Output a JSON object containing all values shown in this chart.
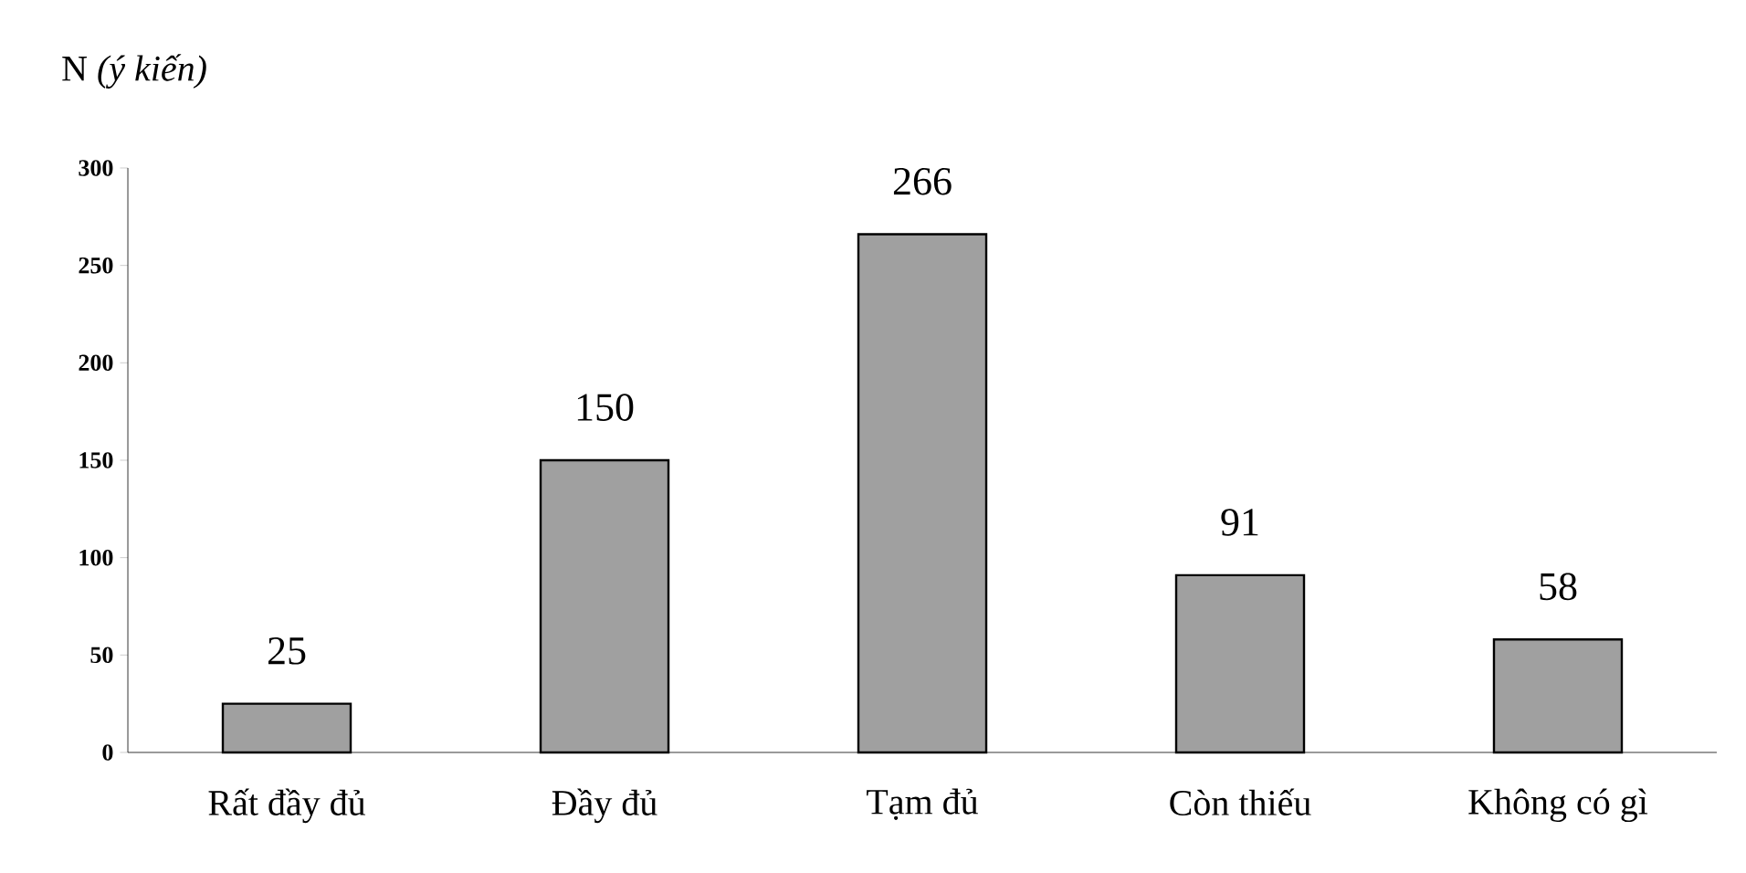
{
  "chart_data": {
    "type": "bar",
    "ylabel": "N *(ý kiến)*",
    "categories": [
      "Rất đầy đủ",
      "Đầy đủ",
      "Tạm đủ",
      "Còn thiếu",
      "Không có gì"
    ],
    "values": [
      25,
      150,
      266,
      91,
      58
    ],
    "color": "#a0a0a0",
    "ylim": [
      0,
      300
    ],
    "yticks": [
      0,
      50,
      100,
      150,
      200,
      250,
      300
    ],
    "data_labels": true
  }
}
